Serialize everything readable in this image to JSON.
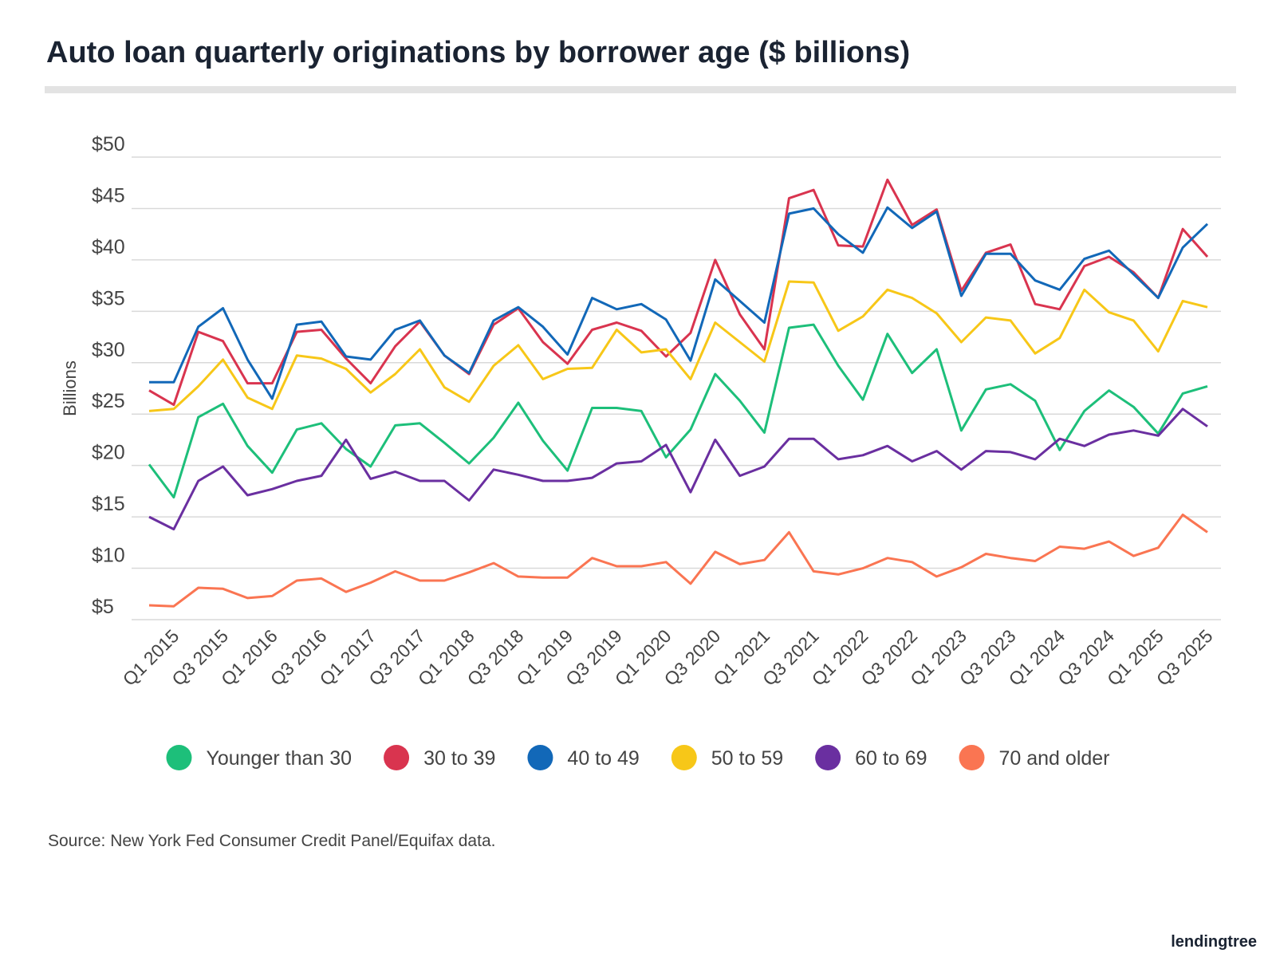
{
  "chart_data": {
    "type": "line",
    "title": "Auto loan quarterly originations by borrower age ($ billions)",
    "y_label": "Billions",
    "source": "Source: New York Fed Consumer Credit Panel/Equifax data.",
    "brand": "lendingtree",
    "categories": [
      null,
      "Q1 2015",
      null,
      "Q3 2015",
      null,
      "Q1 2016",
      null,
      "Q3 2016",
      null,
      "Q1 2017",
      null,
      "Q3 2017",
      null,
      "Q1 2018",
      null,
      "Q3 2018",
      null,
      "Q1 2019",
      null,
      "Q3 2019",
      null,
      "Q1 2020",
      null,
      "Q3 2020",
      null,
      "Q1 2021",
      null,
      "Q3 2021",
      null,
      "Q1 2022",
      null,
      "Q3 2022",
      null,
      "Q1 2023",
      null,
      "Q3 2023",
      null,
      "Q1 2024",
      null,
      "Q3 2024",
      null,
      "Q1 2025",
      null,
      "Q3 2025"
    ],
    "ylim": [
      5,
      50
    ],
    "yticks": [
      {
        "value": 5,
        "label": "$5"
      },
      {
        "value": 10,
        "label": "$10"
      },
      {
        "value": 15,
        "label": "$15"
      },
      {
        "value": 20,
        "label": "$20"
      },
      {
        "value": 25,
        "label": "$25"
      },
      {
        "value": 30,
        "label": "$30"
      },
      {
        "value": 35,
        "label": "$35"
      },
      {
        "value": 40,
        "label": "$40"
      },
      {
        "value": 45,
        "label": "$45"
      },
      {
        "value": 50,
        "label": "$50"
      }
    ],
    "grid": true,
    "series": [
      {
        "name": "Younger than 30",
        "color": "#1dbf7a",
        "values": [
          20.1,
          16.9,
          24.7,
          26.0,
          21.9,
          19.3,
          23.5,
          24.1,
          21.6,
          19.9,
          23.9,
          24.1,
          22.2,
          20.2,
          22.7,
          26.1,
          22.4,
          19.5,
          25.6,
          25.6,
          25.3,
          20.8,
          23.5,
          28.9,
          26.3,
          23.2,
          33.4,
          33.7,
          29.7,
          26.4,
          32.8,
          29.0,
          31.3,
          23.4,
          27.4,
          27.9,
          26.3,
          21.5,
          25.3,
          27.3,
          25.7,
          23.1,
          27.0,
          27.7
        ]
      },
      {
        "name": "30 to 39",
        "color": "#d9344f",
        "values": [
          27.3,
          25.9,
          33.0,
          32.1,
          28.0,
          28.0,
          33.0,
          33.2,
          30.4,
          28.0,
          31.6,
          34.0,
          30.7,
          28.9,
          33.7,
          35.3,
          32.0,
          29.9,
          33.2,
          33.9,
          33.1,
          30.6,
          32.9,
          40.0,
          34.7,
          31.3,
          46.0,
          46.8,
          41.4,
          41.3,
          47.8,
          43.4,
          44.9,
          37.0,
          40.7,
          41.5,
          35.7,
          35.2,
          39.4,
          40.3,
          38.8,
          36.3,
          43.0,
          40.3
        ]
      },
      {
        "name": "40 to 49",
        "color": "#1268b8",
        "values": [
          28.1,
          28.1,
          33.5,
          35.3,
          30.3,
          26.5,
          33.7,
          34.0,
          30.6,
          30.3,
          33.2,
          34.1,
          30.7,
          29.0,
          34.1,
          35.4,
          33.5,
          30.8,
          36.3,
          35.2,
          35.7,
          34.2,
          30.2,
          38.1,
          36.0,
          33.9,
          44.5,
          45.0,
          42.5,
          40.7,
          45.1,
          43.1,
          44.7,
          36.5,
          40.6,
          40.6,
          38.0,
          37.1,
          40.1,
          40.9,
          38.6,
          36.3,
          41.2,
          43.5
        ]
      },
      {
        "name": "50 to 59",
        "color": "#f7c718",
        "values": [
          25.3,
          25.5,
          27.7,
          30.3,
          26.6,
          25.5,
          30.7,
          30.4,
          29.4,
          27.1,
          28.9,
          31.3,
          27.6,
          26.2,
          29.7,
          31.7,
          28.4,
          29.4,
          29.5,
          33.2,
          31.0,
          31.3,
          28.4,
          33.9,
          32.0,
          30.1,
          37.9,
          37.8,
          33.1,
          34.5,
          37.1,
          36.3,
          34.8,
          32.0,
          34.4,
          34.1,
          30.9,
          32.4,
          37.1,
          34.9,
          34.1,
          31.1,
          36.0,
          35.4
        ]
      },
      {
        "name": "60 to 69",
        "color": "#6a2fa0",
        "values": [
          15.0,
          13.8,
          18.5,
          19.9,
          17.1,
          17.7,
          18.5,
          19.0,
          22.5,
          18.7,
          19.4,
          18.5,
          18.5,
          16.6,
          19.6,
          19.1,
          18.5,
          18.5,
          18.8,
          20.2,
          20.4,
          22.0,
          17.4,
          22.5,
          19.0,
          19.9,
          22.6,
          22.6,
          20.6,
          21.0,
          21.9,
          20.4,
          21.4,
          19.6,
          21.4,
          21.3,
          20.6,
          22.6,
          21.9,
          23.0,
          23.4,
          22.9,
          25.5,
          23.8
        ]
      },
      {
        "name": "70 and older",
        "color": "#fa7552",
        "values": [
          6.4,
          6.3,
          8.1,
          8.0,
          7.1,
          7.3,
          8.8,
          9.0,
          7.7,
          8.6,
          9.7,
          8.8,
          8.8,
          9.6,
          10.5,
          9.2,
          9.1,
          9.1,
          11.0,
          10.2,
          10.2,
          10.6,
          8.5,
          11.6,
          10.4,
          10.8,
          13.5,
          9.7,
          9.4,
          10.0,
          11.0,
          10.6,
          9.2,
          10.1,
          11.4,
          11.0,
          10.7,
          12.1,
          11.9,
          12.6,
          11.2,
          12.0,
          15.2,
          13.5
        ]
      }
    ]
  }
}
